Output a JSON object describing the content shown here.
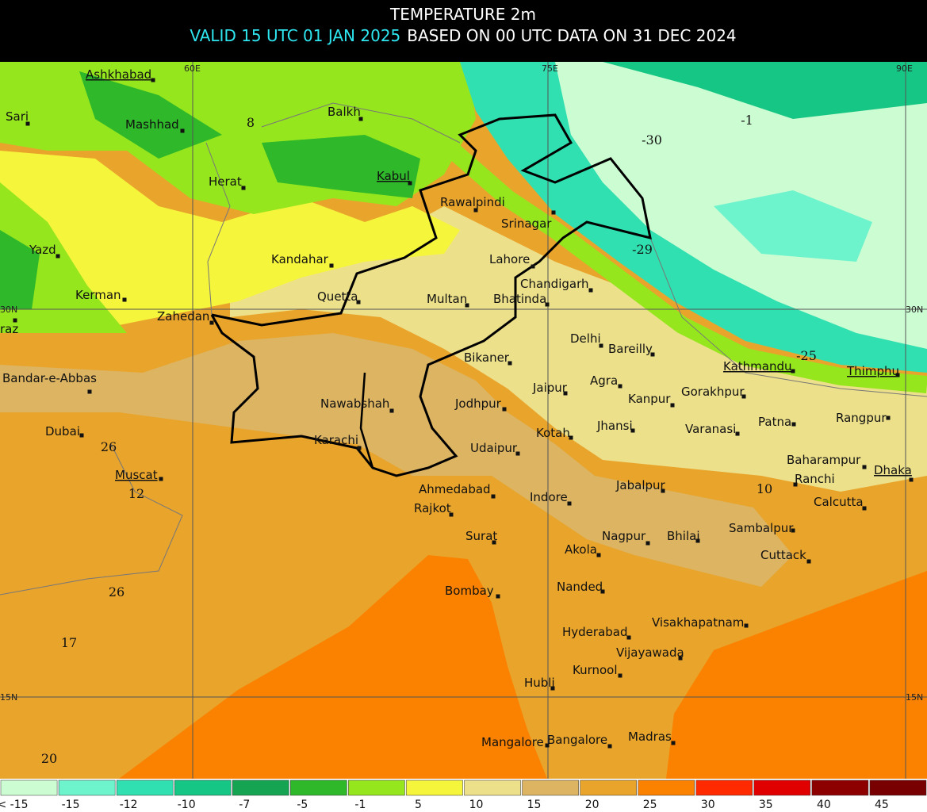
{
  "header": {
    "title": "TEMPERATURE 2m",
    "valid": "VALID 15 UTC 01 JAN 2025",
    "based": "BASED ON 00 UTC DATA ON 31 DEC 2024"
  },
  "map": {
    "grid_labels": [
      "60E",
      "75E",
      "90E",
      "30N",
      "30N",
      "15N",
      "15N"
    ],
    "places": [
      "Ashkhabad",
      "Sari",
      "Mashhad",
      "Balkh",
      "Herat",
      "Kabul",
      "Rawalpindi",
      "Srinagar",
      "Yazd",
      "Kandahar",
      "Lahore",
      "Chandigarh",
      "Kerman",
      "Quetta",
      "Multan",
      "Bhatinda",
      "Zahedan",
      "raz",
      "Delhi",
      "Bareilly",
      "Bikaner",
      "Kathmandu",
      "Thimphu",
      "Bandar-e-Abbas",
      "Jaipur",
      "Agra",
      "Kanpur",
      "Gorakhpur",
      "Jodhpur",
      "Nawabshah",
      "Rangpur",
      "Jhansi",
      "Patna",
      "Dubai",
      "Varanasi",
      "Kotah",
      "Karachi",
      "Udaipur",
      "Baharampur",
      "Muscat",
      "Ranchi",
      "Dhaka",
      "Ahmedabad",
      "Jabalpur",
      "Indore",
      "Calcutta",
      "Rajkot",
      "Surat",
      "Nagpur",
      "Bhilai",
      "Sambalpur",
      "Akola",
      "Cuttack",
      "Nanded",
      "Bombay",
      "Visakhapatnam",
      "Hyderabad",
      "Vijayawada",
      "Kurnool",
      "Hubli",
      "Mangalore",
      "Bangalore",
      "Madras"
    ],
    "values": [
      "8",
      "-1",
      "-30",
      "-29",
      "-25",
      "26",
      "12",
      "10",
      "26",
      "17",
      "20"
    ]
  },
  "legend": [
    {
      "label": "< -15",
      "color": "#ccfcd2"
    },
    {
      "label": "-15",
      "color": "#6ef4cc"
    },
    {
      "label": "-12",
      "color": "#30e0b0"
    },
    {
      "label": "-10",
      "color": "#16c684"
    },
    {
      "label": "-7",
      "color": "#14a452"
    },
    {
      "label": "-5",
      "color": "#2eb82a"
    },
    {
      "label": "-1",
      "color": "#96e61e"
    },
    {
      "label": "5",
      "color": "#f5f53c"
    },
    {
      "label": "10",
      "color": "#ece08a"
    },
    {
      "label": "15",
      "color": "#dcb462"
    },
    {
      "label": "20",
      "color": "#e9a42c"
    },
    {
      "label": "25",
      "color": "#fb8200"
    },
    {
      "label": "30",
      "color": "#ff2a00"
    },
    {
      "label": "35",
      "color": "#e00000"
    },
    {
      "label": "40",
      "color": "#8c0000"
    },
    {
      "label": "45",
      "color": "#780000"
    }
  ]
}
